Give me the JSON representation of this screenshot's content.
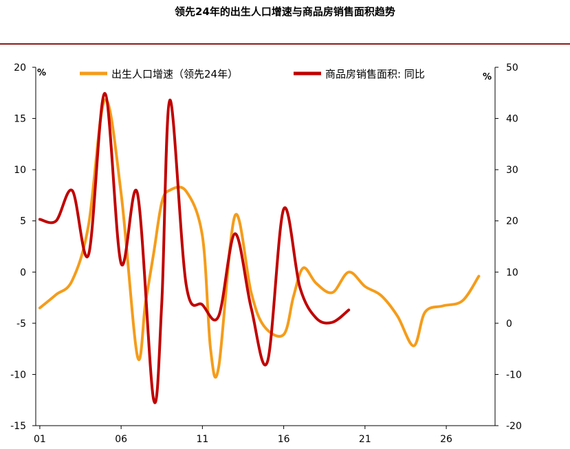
{
  "title": "领先24年的出生人口增速与商品房销售面积趋势",
  "colors": {
    "birth": "#f59c1a",
    "housing": "#c00000",
    "rule": "#8b1a1a",
    "axis": "#000000"
  },
  "chart_data": {
    "type": "line",
    "x_ticks": [
      "01",
      "06",
      "11",
      "16",
      "21",
      "26"
    ],
    "y_left": {
      "unit": "%",
      "range": [
        -15,
        20
      ],
      "ticks": [
        20,
        15,
        10,
        5,
        0,
        -5,
        -10,
        -15
      ]
    },
    "y_right": {
      "unit": "%",
      "range": [
        -20,
        50
      ],
      "ticks": [
        50,
        40,
        30,
        20,
        10,
        0,
        -10,
        -20
      ]
    },
    "legend_position": "top",
    "series": [
      {
        "name": "出生人口增速（领先24年）",
        "axis": "left",
        "x": [
          2001,
          2002,
          2003,
          2004,
          2005,
          2006,
          2007,
          2007.5,
          2008,
          2008.5,
          2009,
          2010,
          2011,
          2011.5,
          2012,
          2013,
          2014,
          2014.8,
          2016,
          2016.6,
          2017.2,
          2018,
          2019,
          2020,
          2021,
          2022,
          2023,
          2024,
          2024.7,
          2025.8,
          2027,
          2028
        ],
        "values": [
          -3.5,
          -2.2,
          -0.8,
          4.6,
          16.8,
          7.7,
          -8.2,
          -3.0,
          1.8,
          6.8,
          8.0,
          7.9,
          3.5,
          -7.5,
          -9.3,
          5.5,
          -2.0,
          -5.3,
          -6.1,
          -2.4,
          0.4,
          -1.1,
          -2.0,
          0.0,
          -1.4,
          -2.3,
          -4.3,
          -7.2,
          -3.9,
          -3.3,
          -2.8,
          -0.4
        ]
      },
      {
        "name": "商品房销售面积: 同比",
        "axis": "right",
        "x": [
          2001,
          2002,
          2003,
          2004,
          2005,
          2006,
          2007,
          2008,
          2008.5,
          2009,
          2010,
          2011,
          2012,
          2013,
          2014,
          2015,
          2016,
          2017,
          2018,
          2019,
          2020
        ],
        "values": [
          20.3,
          20.0,
          25.9,
          13.4,
          44.9,
          11.7,
          25.4,
          -14.9,
          4.0,
          43.6,
          7.6,
          3.6,
          1.4,
          17.5,
          3.0,
          -7.5,
          22.3,
          7.0,
          1.0,
          0.2,
          2.6
        ]
      }
    ]
  }
}
